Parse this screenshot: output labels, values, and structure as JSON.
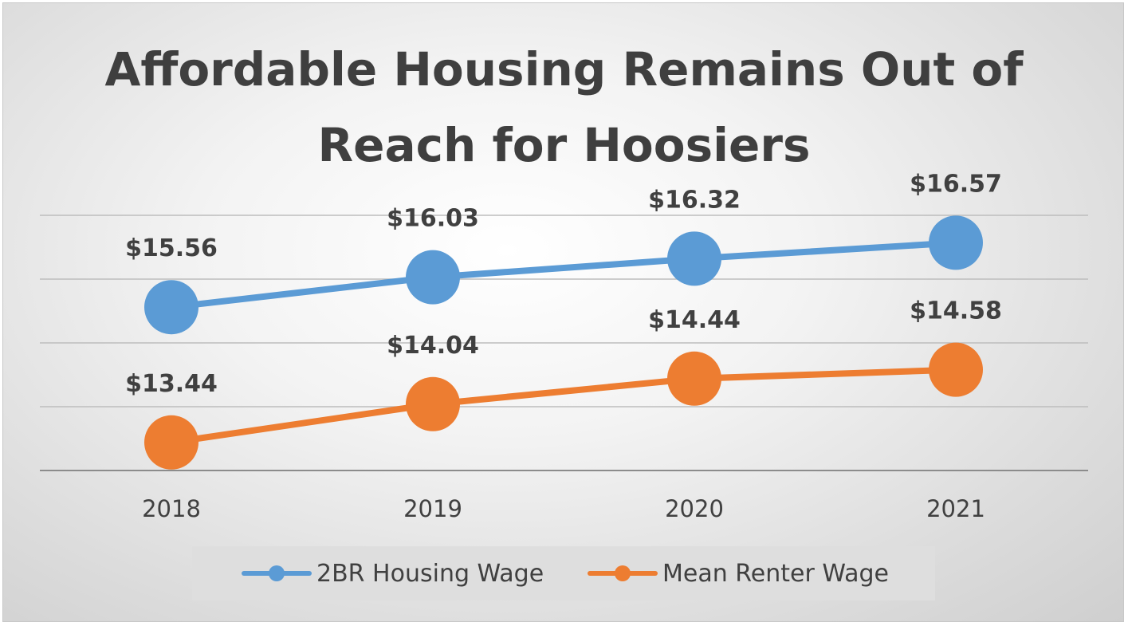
{
  "title_lines": [
    "Affordable Housing Remains Out of",
    "Reach for Hoosiers"
  ],
  "chart_data": {
    "type": "line",
    "title": "Affordable Housing Remains Out of Reach for Hoosiers",
    "categories": [
      "2018",
      "2019",
      "2020",
      "2021"
    ],
    "series": [
      {
        "name": "2BR Housing Wage",
        "color": "#5b9bd5",
        "values": [
          15.56,
          16.03,
          16.32,
          16.57
        ],
        "labels": [
          "$15.56",
          "$16.03",
          "$16.32",
          "$16.57"
        ]
      },
      {
        "name": "Mean Renter Wage",
        "color": "#ed7d31",
        "values": [
          13.44,
          14.04,
          14.44,
          14.58
        ],
        "labels": [
          "$13.44",
          "$14.04",
          "$14.44",
          "$14.58"
        ]
      }
    ],
    "ylim": [
      13,
      17
    ],
    "grid": true,
    "legend": "bottom"
  }
}
